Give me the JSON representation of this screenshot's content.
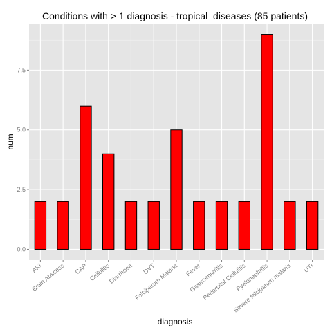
{
  "chart_data": {
    "type": "bar",
    "title": "Conditions with > 1 diagnosis - tropical_diseases (85 patients)",
    "xlabel": "diagnosis",
    "ylabel": "num",
    "categories": [
      "AKI",
      "Brain Abscess",
      "CAP",
      "Cellulitis",
      "Diarrhoea",
      "DVT",
      "Falciparum Malaria",
      "Fever",
      "Gastroenteritis",
      "Periorbital Cellulitis",
      "Pyelonephritis",
      "Severe falciparum malaria",
      "UTI"
    ],
    "values": [
      2,
      2,
      6,
      4,
      2,
      2,
      5,
      2,
      2,
      2,
      9,
      2,
      2
    ],
    "ylim": [
      -0.45,
      9.45
    ],
    "yticks": [
      0.0,
      2.5,
      5.0,
      7.5
    ],
    "ytick_labels": [
      "0.0",
      "2.5",
      "5.0",
      "7.5"
    ],
    "grid": true,
    "colors": {
      "panel": "#e5e5e5",
      "grid_major": "#ffffff",
      "grid_minor": "#f2f2f2",
      "bar_fill": "#ff0000",
      "bar_stroke": "#000000",
      "tick_text": "#7f7f7f"
    }
  }
}
